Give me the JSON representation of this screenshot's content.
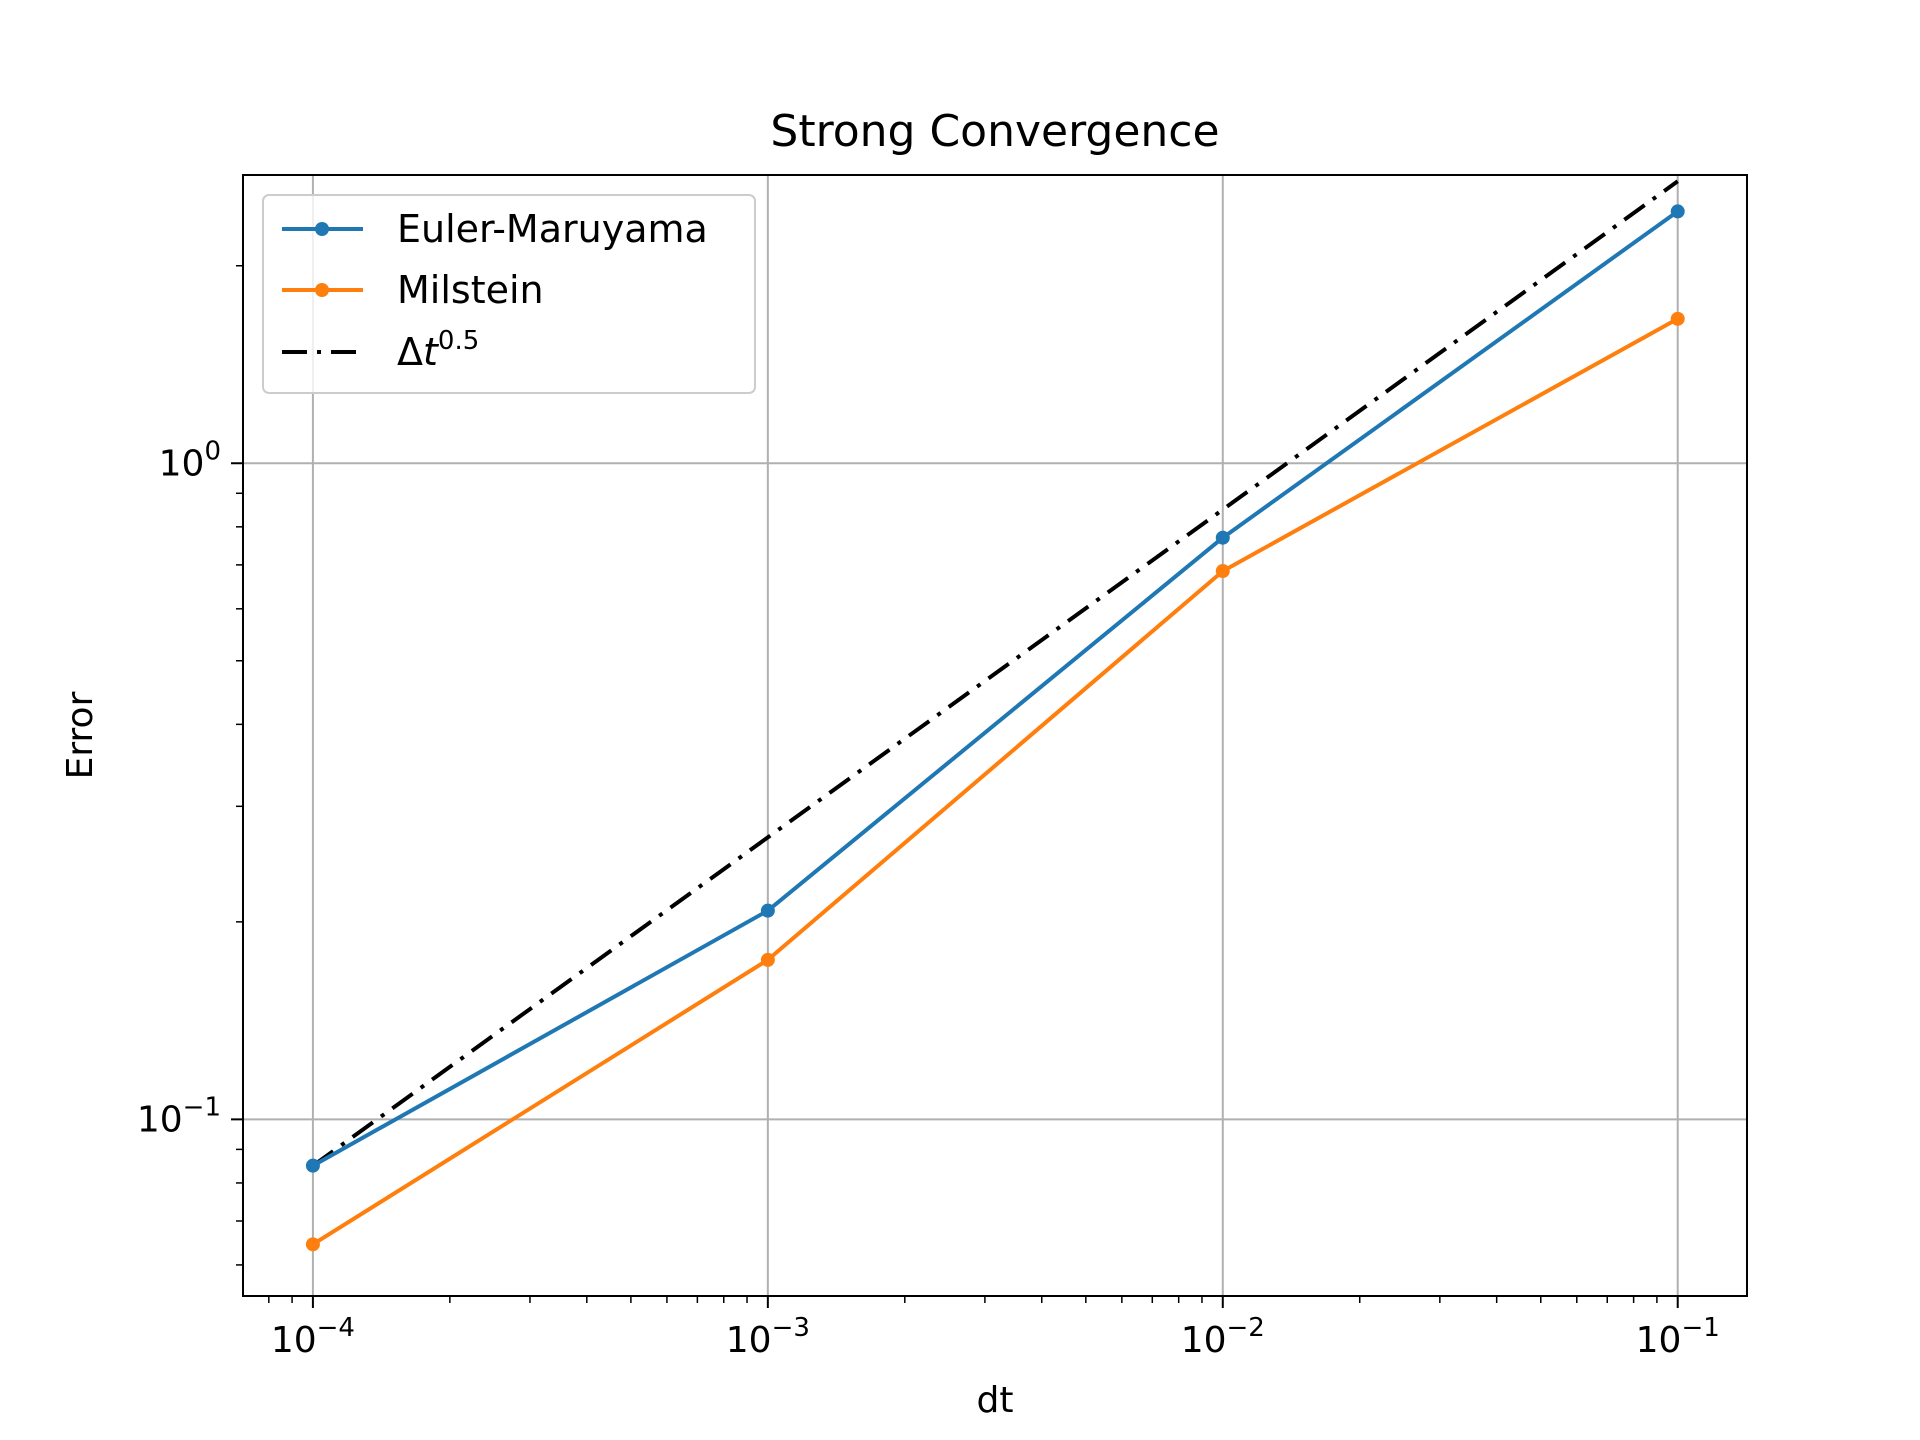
{
  "chart_data": {
    "type": "line",
    "title": "Strong Convergence",
    "xlabel": "dt",
    "ylabel": "Error",
    "xscale": "log",
    "yscale": "log",
    "xlim": [
      7.02e-05,
      0.142
    ],
    "ylim": [
      0.0538,
      2.75
    ],
    "grid": true,
    "legend_position": "upper-left",
    "x": [
      0.0001,
      0.001,
      0.01,
      0.1
    ],
    "series": [
      {
        "name": "Euler-Maruyama",
        "color": "#1f77b4",
        "marker": "circle",
        "linestyle": "solid",
        "values": [
          0.085,
          0.208,
          0.77,
          2.42
        ]
      },
      {
        "name": "Milstein",
        "color": "#ff7f0e",
        "marker": "circle",
        "linestyle": "solid",
        "values": [
          0.0645,
          0.175,
          0.685,
          1.66
        ]
      },
      {
        "name": "Δt^0.5",
        "color": "#000000",
        "marker": "none",
        "linestyle": "dashdot",
        "values": [
          0.085,
          0.269,
          0.85,
          2.69
        ]
      }
    ],
    "xticks": [
      {
        "value": 0.0001,
        "base": "10",
        "exp": "−4"
      },
      {
        "value": 0.001,
        "base": "10",
        "exp": "−3"
      },
      {
        "value": 0.01,
        "base": "10",
        "exp": "−2"
      },
      {
        "value": 0.1,
        "base": "10",
        "exp": "−1"
      }
    ],
    "yticks": [
      {
        "value": 0.1,
        "base": "10",
        "exp": "−1"
      },
      {
        "value": 1,
        "base": "10",
        "exp": "0"
      }
    ],
    "legend": {
      "entries": [
        {
          "label": "Euler-Maruyama"
        },
        {
          "label": "Milstein"
        },
        {
          "label_main": "Δ",
          "label_var": "t",
          "label_sup": "0.5"
        }
      ]
    }
  }
}
